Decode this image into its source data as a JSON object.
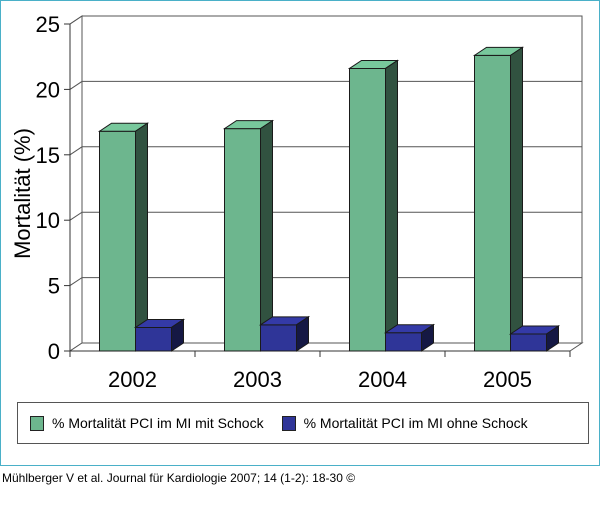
{
  "chart_data": {
    "type": "bar",
    "categories": [
      "2002",
      "2003",
      "2004",
      "2005"
    ],
    "series": [
      {
        "name": "% Mortalität PCI im MI mit Schock",
        "color": "#6db68e",
        "values": [
          16.8,
          17.0,
          21.6,
          22.6
        ]
      },
      {
        "name": "% Mortalität PCI im MI ohne Schock",
        "color": "#2f3598",
        "values": [
          1.8,
          2.0,
          1.4,
          1.3
        ]
      }
    ],
    "ylabel": "Mortalität (%)",
    "ylim": [
      0,
      25
    ],
    "yticks": [
      "0",
      "5",
      "10",
      "15",
      "20",
      "25"
    ],
    "grid": true,
    "style": "3d",
    "legend_position": "bottom"
  },
  "footer": {
    "source": "Mühlberger V et al. Journal für Kardiologie 2007; 14 (1-2): 18-30 ©"
  }
}
